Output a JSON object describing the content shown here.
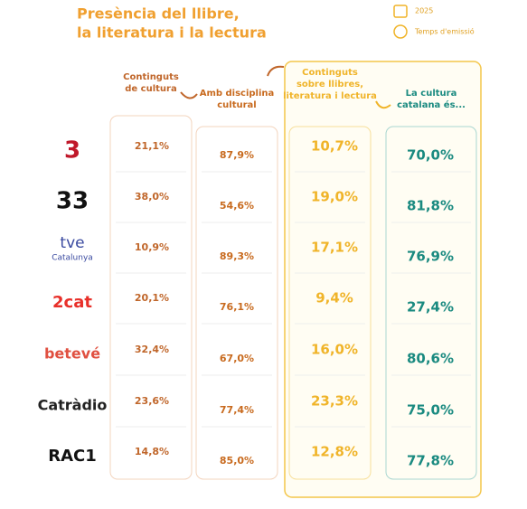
{
  "header": {
    "title": [
      "Presència del llibre,",
      "la literatura i la lectura"
    ]
  },
  "legend": [
    {
      "label": "2025"
    },
    {
      "label": "Temps d'emissió"
    }
  ],
  "table": {
    "columns": [
      [
        "Continguts",
        "de cultura"
      ],
      [
        "Amb disciplina",
        "cultural"
      ],
      [
        "Continguts",
        "sobre llibres,",
        "literatura i lectura"
      ],
      [
        "La cultura",
        "catalana és..."
      ]
    ],
    "rows": [
      {
        "channel": "3",
        "values": [
          "21,1%",
          "87,9%",
          "10,7%",
          "70,0%"
        ]
      },
      {
        "channel": "33",
        "values": [
          "38,0%",
          "54,6%",
          "19,0%",
          "81,8%"
        ]
      },
      {
        "channel": [
          "tve",
          "Catalunya"
        ],
        "values": [
          "10,9%",
          "89,3%",
          "17,1%",
          "76,9%"
        ]
      },
      {
        "channel": "2cat",
        "values": [
          "20,1%",
          "76,1%",
          "9,4%",
          "27,4%"
        ]
      },
      {
        "channel": "betevé",
        "values": [
          "32,4%",
          "67,0%",
          "16,0%",
          "80,6%"
        ]
      },
      {
        "channel": "Catràdio",
        "values": [
          "23,6%",
          "77,4%",
          "23,3%",
          "75,0%"
        ]
      },
      {
        "channel": "RAC1",
        "values": [
          "14,8%",
          "85,0%",
          "12,8%",
          "77,8%"
        ]
      }
    ]
  }
}
